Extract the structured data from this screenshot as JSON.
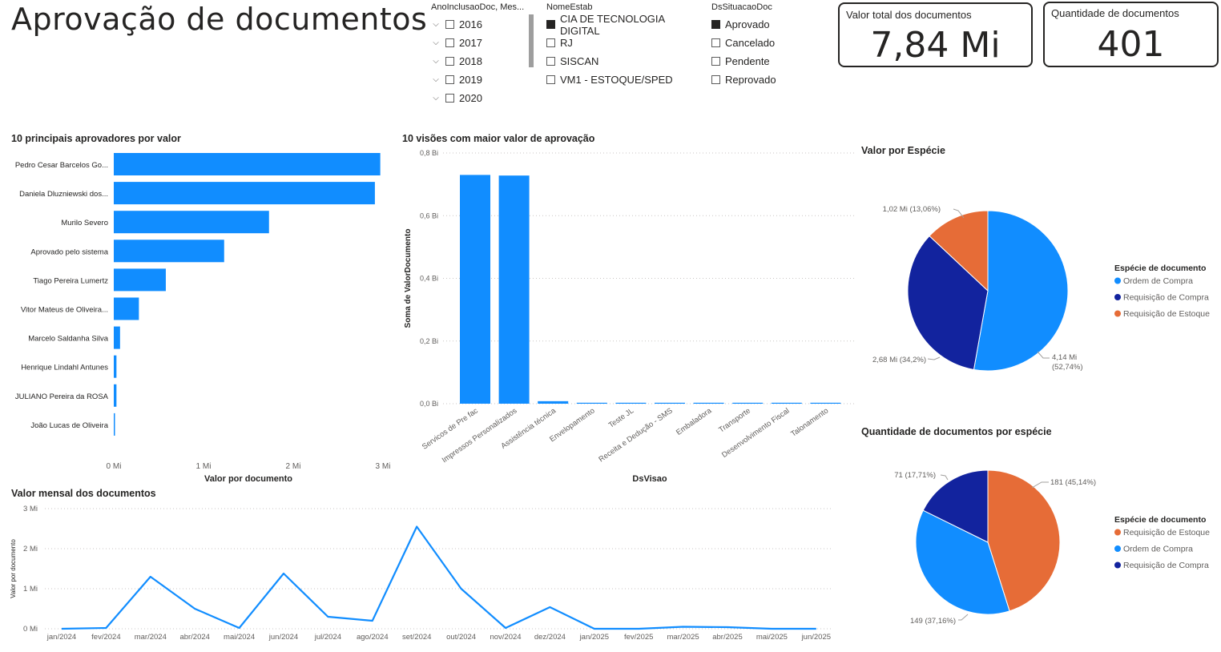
{
  "page": {
    "title": "Aprovação de documentos"
  },
  "slicers": {
    "year": {
      "title": "AnoInclusaoDoc, Mes...",
      "items": [
        "2016",
        "2017",
        "2018",
        "2019",
        "2020"
      ]
    },
    "estab": {
      "title": "NomeEstab",
      "items": [
        {
          "label": "CIA DE TECNOLOGIA DIGITAL",
          "checked": true
        },
        {
          "label": "RJ",
          "checked": false
        },
        {
          "label": "SISCAN",
          "checked": false
        },
        {
          "label": "VM1 - ESTOQUE/SPED",
          "checked": false
        }
      ]
    },
    "situacao": {
      "title": "DsSituacaoDoc",
      "items": [
        {
          "label": "Aprovado",
          "checked": true
        },
        {
          "label": "Cancelado",
          "checked": false
        },
        {
          "label": "Pendente",
          "checked": false
        },
        {
          "label": "Reprovado",
          "checked": false
        }
      ]
    }
  },
  "cards": {
    "valor_total": {
      "label": "Valor total dos documentos",
      "value": "7,84 Mi"
    },
    "quantidade": {
      "label": "Quantidade de documentos",
      "value": "401"
    }
  },
  "colors": {
    "blue": "#118dff",
    "navy": "#12239e",
    "orange": "#e66c37",
    "text": "#252423",
    "axis": "#605e5c"
  },
  "chart_data": [
    {
      "id": "aprovadores",
      "type": "bar",
      "orientation": "horizontal",
      "title": "10 principais aprovadores por valor",
      "xlabel": "Valor por documento",
      "categories": [
        "Pedro Cesar Barcelos Go...",
        "Daniela Dluzniewski dos...",
        "Murilo Severo",
        "Aprovado pelo sistema",
        "Tiago Pereira Lumertz",
        "Vitor Mateus de Oliveira...",
        "Marcelo Saldanha Silva",
        "Henrique Lindahl Antunes",
        "JULIANO Pereira da ROSA",
        "João Lucas de Oliveira"
      ],
      "values": [
        2.97,
        2.91,
        1.73,
        1.23,
        0.58,
        0.28,
        0.07,
        0.03,
        0.03,
        0.01
      ],
      "xlim": [
        0,
        3
      ],
      "ticks": [
        "0 Mi",
        "1 Mi",
        "2 Mi",
        "3 Mi"
      ]
    },
    {
      "id": "visoes",
      "type": "bar",
      "title": "10 visões com maior valor de aprovação",
      "xlabel": "DsVisao",
      "ylabel": "Soma de ValorDocumento",
      "categories": [
        "Servicos de Pre fac",
        "Impressos Personalizados",
        "Assistência técnica",
        "Envelopamento",
        "Teste JL",
        "Receita e Dedução - SMS",
        "Embaladora",
        "Transporte",
        "Desenvolvimento Fiscal",
        "Talonamento"
      ],
      "values": [
        0.73,
        0.728,
        0.008,
        0.002,
        0.001,
        0.001,
        0.001,
        0.001,
        0.001,
        0.001
      ],
      "ylim": [
        0,
        0.8
      ],
      "ticks": [
        "0,0 Bi",
        "0,2 Bi",
        "0,4 Bi",
        "0,6 Bi",
        "0,8 Bi"
      ]
    },
    {
      "id": "mensal",
      "type": "line",
      "title": "Valor mensal dos documentos",
      "ylabel": "Valor por documento",
      "x": [
        "jan/2024",
        "fev/2024",
        "mar/2024",
        "abr/2024",
        "mai/2024",
        "jun/2024",
        "jul/2024",
        "ago/2024",
        "set/2024",
        "out/2024",
        "nov/2024",
        "dez/2024",
        "jan/2025",
        "fev/2025",
        "mar/2025",
        "abr/2025",
        "mai/2025",
        "jun/2025"
      ],
      "values": [
        0.0,
        0.02,
        1.3,
        0.5,
        0.02,
        1.38,
        0.3,
        0.2,
        2.55,
        1.0,
        0.02,
        0.54,
        0.0,
        0.0,
        0.05,
        0.04,
        0.0,
        0.0
      ],
      "ylim": [
        0,
        3
      ],
      "ticks": [
        "0 Mi",
        "1 Mi",
        "2 Mi",
        "3 Mi"
      ]
    },
    {
      "id": "valor_especie",
      "type": "pie",
      "title": "Valor por Espécie",
      "legend_title": "Espécie de documento",
      "legend_placement": "right",
      "slices": [
        {
          "name": "Ordem de Compra",
          "value": 4.14,
          "label": "4,14 Mi (52,74%)",
          "color": "#118dff"
        },
        {
          "name": "Requisição de Compra",
          "value": 2.68,
          "label": "2,68 Mi (34,2%)",
          "color": "#12239e"
        },
        {
          "name": "Requisição de Estoque",
          "value": 1.02,
          "label": "1,02 Mi (13,06%)",
          "color": "#e66c37"
        }
      ]
    },
    {
      "id": "qtd_especie",
      "type": "pie",
      "title": "Quantidade de documentos por espécie",
      "legend_title": "Espécie de documento",
      "legend_placement": "right",
      "slices": [
        {
          "name": "Requisição de Estoque",
          "value": 181,
          "label": "181 (45,14%)",
          "color": "#e66c37"
        },
        {
          "name": "Ordem de Compra",
          "value": 149,
          "label": "149 (37,16%)",
          "color": "#118dff"
        },
        {
          "name": "Requisição de Compra",
          "value": 71,
          "label": "71 (17,71%)",
          "color": "#12239e"
        }
      ]
    }
  ]
}
